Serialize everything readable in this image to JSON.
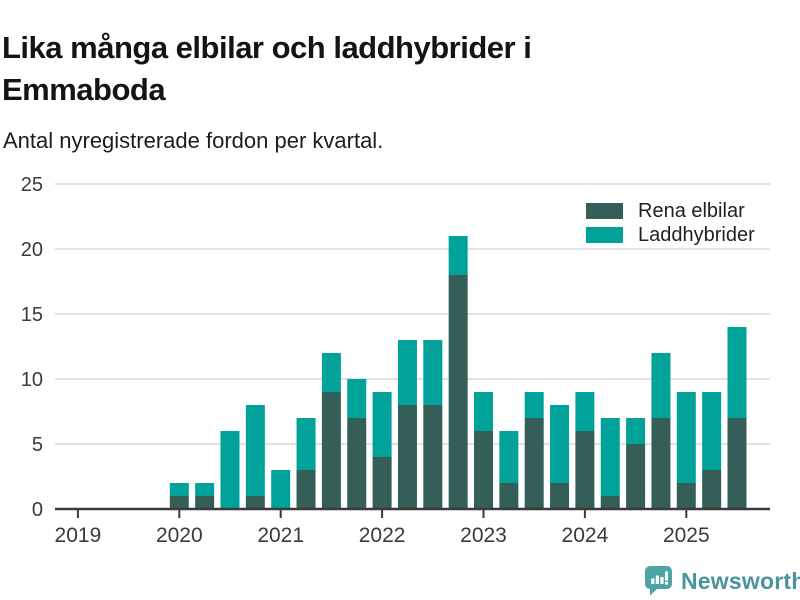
{
  "header": {
    "title": "Lika många elbilar och laddhybrider i Emmaboda",
    "subtitle": "Antal nyregistrerade fordon per kvartal."
  },
  "chart_data": {
    "type": "bar",
    "stacked": true,
    "title": "Lika många elbilar och laddhybrider i Emmaboda",
    "subtitle": "Antal nyregistrerade fordon per kvartal.",
    "xlabel": "",
    "ylabel": "",
    "ylim": [
      0,
      25
    ],
    "y_ticks": [
      0,
      5,
      10,
      15,
      20,
      25
    ],
    "grid": "horizontal",
    "grid_color": "#e2e2e2",
    "axis_color": "#3a3a3a",
    "legend_position": "top-right",
    "categories": [
      "2019 Q1",
      "2019 Q2",
      "2019 Q3",
      "2019 Q4",
      "2020 Q1",
      "2020 Q2",
      "2020 Q3",
      "2020 Q4",
      "2021 Q1",
      "2021 Q2",
      "2021 Q3",
      "2021 Q4",
      "2022 Q1",
      "2022 Q2",
      "2022 Q3",
      "2022 Q4",
      "2023 Q1",
      "2023 Q2",
      "2023 Q3",
      "2023 Q4",
      "2024 Q1",
      "2024 Q2",
      "2024 Q3",
      "2024 Q4",
      "2025 Q1",
      "2025 Q2",
      "2025 Q3"
    ],
    "x_tick_labels": [
      "2019",
      "2020",
      "2021",
      "2022",
      "2023",
      "2024",
      "2025"
    ],
    "series": [
      {
        "name": "Rena elbilar",
        "color": "#355e58",
        "values": [
          0,
          0,
          0,
          0,
          1,
          1,
          0,
          1,
          0,
          3,
          9,
          7,
          4,
          8,
          8,
          18,
          6,
          2,
          7,
          2,
          6,
          1,
          5,
          7,
          2,
          3,
          7
        ]
      },
      {
        "name": "Laddhybrider",
        "color": "#00a29a",
        "values": [
          0,
          0,
          0,
          0,
          1,
          1,
          6,
          7,
          3,
          4,
          3,
          3,
          5,
          5,
          5,
          3,
          3,
          4,
          2,
          6,
          3,
          6,
          2,
          5,
          7,
          6,
          7
        ]
      }
    ]
  },
  "footer": {
    "brand": "Newsworthy",
    "brand_color": "#4a959c",
    "icon_color": "#4ba5a2"
  }
}
